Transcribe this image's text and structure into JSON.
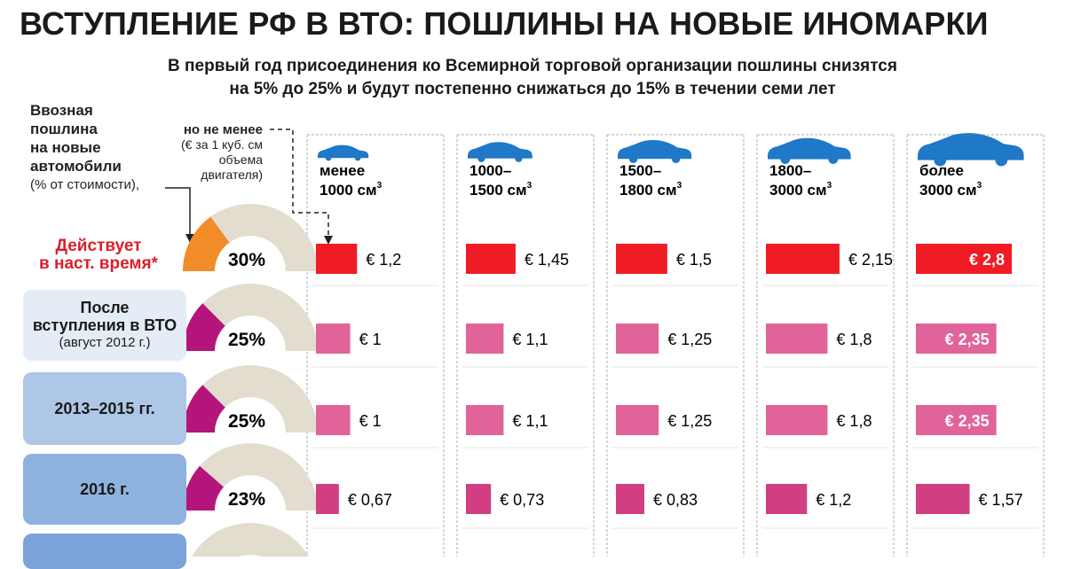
{
  "title": "ВСТУПЛЕНИЕ РФ В ВТО: ПОШЛИНЫ НА НОВЫЕ ИНОМАРКИ",
  "subtitle_line1": "В первый год присоединения ко Всемирной торговой организации пошлины снизятся",
  "subtitle_line2": "на 5% до 25% и будут постепенно снижаться до 15% в течении семи лет",
  "header_import": {
    "line1": "Ввозная",
    "line2": "пошлина",
    "line3": "на новые",
    "line4": "автомобили",
    "line5": "(% от стоимости),"
  },
  "header_min": {
    "line1": "но не менее",
    "line2": "(€ за 1 куб. см",
    "line3": "объема",
    "line4": "двигателя)"
  },
  "colors": {
    "current": "#ef1c25",
    "pink_light": "#e0649a",
    "pink_dark": "#d13f82",
    "gauge_orange": "#f28c28",
    "gauge_magenta": "#b5157a",
    "gauge_bg": "#e3ddcf",
    "car": "#1f78c8"
  },
  "chart_data": {
    "type": "bar",
    "categories": [
      {
        "line1": "менее",
        "line2": "1000 см",
        "sup": "3"
      },
      {
        "line1": "1000–",
        "line2": "1500 см",
        "sup": "3"
      },
      {
        "line1": "1500–",
        "line2": "1800 см",
        "sup": "3"
      },
      {
        "line1": "1800–",
        "line2": "3000 см",
        "sup": "3"
      },
      {
        "line1": "более",
        "line2": "3000 см",
        "sup": "3"
      }
    ],
    "periods": [
      {
        "label_line1": "Действует",
        "label_line2": "в наст. время*",
        "label_line3": "",
        "duty_pct": 30,
        "pct_label": "30%",
        "values": [
          1.2,
          1.45,
          1.5,
          2.15,
          2.8
        ],
        "value_labels": [
          "€ 1,2",
          "€ 1,45",
          "€ 1,5",
          "€ 2,15",
          "€ 2,8"
        ]
      },
      {
        "label_line1": "После",
        "label_line2": "вступления в ВТО",
        "label_line3": "(август 2012 г.)",
        "duty_pct": 25,
        "pct_label": "25%",
        "values": [
          1,
          1.1,
          1.25,
          1.8,
          2.35
        ],
        "value_labels": [
          "€ 1",
          "€ 1,1",
          "€ 1,25",
          "€ 1,8",
          "€ 2,35"
        ]
      },
      {
        "label_line1": "2013–2015 гг.",
        "label_line2": "",
        "label_line3": "",
        "duty_pct": 25,
        "pct_label": "25%",
        "values": [
          1,
          1.1,
          1.25,
          1.8,
          2.35
        ],
        "value_labels": [
          "€ 1",
          "€ 1,1",
          "€ 1,25",
          "€ 1,8",
          "€ 2,35"
        ]
      },
      {
        "label_line1": "2016 г.",
        "label_line2": "",
        "label_line3": "",
        "duty_pct": 23,
        "pct_label": "23%",
        "values": [
          0.67,
          0.73,
          0.83,
          1.2,
          1.57
        ],
        "value_labels": [
          "€ 0,67",
          "€ 0,73",
          "€ 0,83",
          "€ 1,2",
          "€ 1,57"
        ]
      }
    ],
    "value_unit": "€ per cm³"
  }
}
